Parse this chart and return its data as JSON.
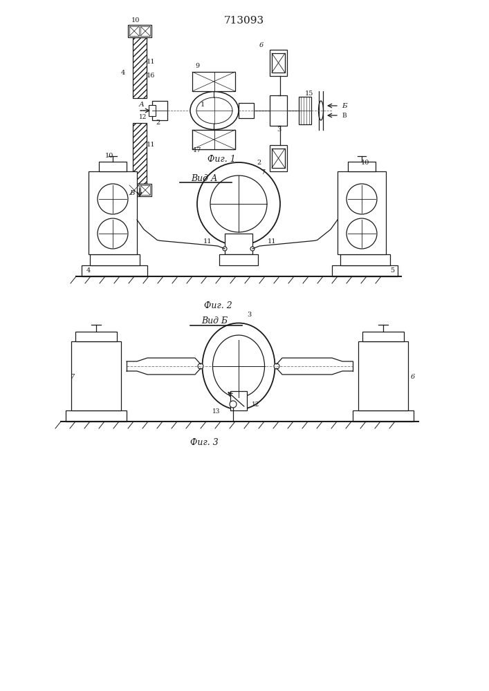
{
  "title": "713093",
  "bg_color": "#ffffff",
  "line_color": "#1a1a1a",
  "fig1_caption": "Фиг. 1",
  "fig2_caption": "Фиг. 2",
  "fig3_caption": "Фиг. 3",
  "vid_a_label": "Вид А",
  "vid_b_label": "Вид Б"
}
